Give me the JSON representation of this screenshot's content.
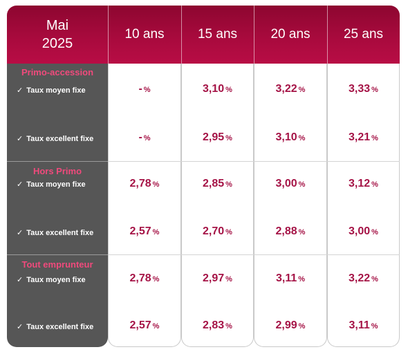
{
  "header": {
    "title_line1": "Mai",
    "title_line2": "2025",
    "columns": [
      "10 ans",
      "15 ans",
      "20 ans",
      "25 ans"
    ]
  },
  "groups": [
    {
      "title": "Primo-accession",
      "rows": [
        {
          "label": "Taux moyen fixe",
          "values": [
            "-",
            "3,10",
            "3,22",
            "3,33"
          ]
        },
        {
          "label": "Taux excellent fixe",
          "values": [
            "-",
            "2,95",
            "3,10",
            "3,21"
          ]
        }
      ]
    },
    {
      "title": "Hors Primo",
      "rows": [
        {
          "label": "Taux moyen fixe",
          "values": [
            "2,78",
            "2,85",
            "3,00",
            "3,12"
          ]
        },
        {
          "label": "Taux excellent fixe",
          "values": [
            "2,57",
            "2,70",
            "2,88",
            "3,00"
          ]
        }
      ]
    },
    {
      "title": "Tout emprunteur",
      "rows": [
        {
          "label": "Taux moyen fixe",
          "values": [
            "2,78",
            "2,97",
            "3,11",
            "3,22"
          ]
        },
        {
          "label": "Taux excellent fixe",
          "values": [
            "2,57",
            "2,83",
            "2,99",
            "3,11"
          ]
        }
      ]
    }
  ],
  "unit": "%",
  "check_glyph": "✓",
  "colors": {
    "header": "#a80a3d",
    "label_column": "#565656",
    "group_title": "#f04a7c",
    "value": "#a51346"
  }
}
